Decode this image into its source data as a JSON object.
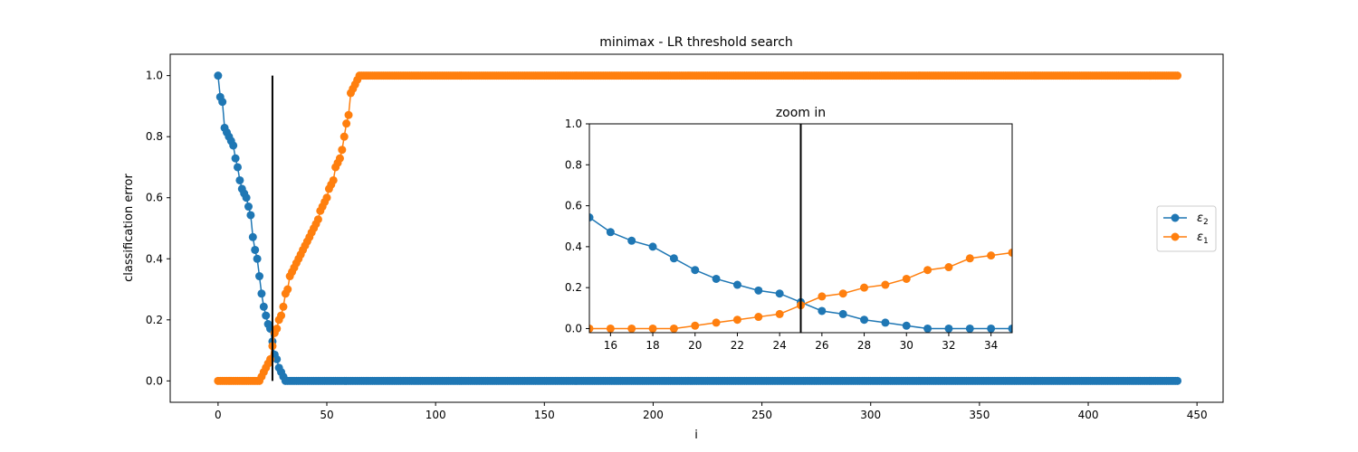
{
  "chart_data": [
    {
      "type": "line",
      "title": "minimax - LR threshold search",
      "xlabel": "i",
      "ylabel": "classification error",
      "xlim": [
        -22,
        462
      ],
      "ylim": [
        -0.07,
        1.07
      ],
      "xticks": [
        0,
        50,
        100,
        150,
        200,
        250,
        300,
        350,
        400,
        450
      ],
      "yticks": [
        0.0,
        0.2,
        0.4,
        0.6,
        0.8,
        1.0
      ],
      "x_range": [
        0,
        441
      ],
      "vline": {
        "x": 25,
        "y": [
          0,
          1
        ]
      },
      "grid": false,
      "legend": "center-right",
      "series": [
        {
          "name": "ε2",
          "sub": "2",
          "color": "#1f77b4",
          "marker": "circle",
          "values": [
            1.0,
            0.93,
            0.914,
            0.829,
            0.814,
            0.8,
            0.786,
            0.771,
            0.729,
            0.7,
            0.657,
            0.629,
            0.614,
            0.6,
            0.571,
            0.543,
            0.471,
            0.429,
            0.4,
            0.343,
            0.286,
            0.243,
            0.214,
            0.186,
            0.171,
            0.129,
            0.086,
            0.071,
            0.043,
            0.029,
            0.014,
            0.0
          ]
        },
        {
          "name": "ε1",
          "sub": "1",
          "color": "#ff7f0e",
          "marker": "circle",
          "values": [
            0.0,
            0.0,
            0.0,
            0.0,
            0.0,
            0.0,
            0.0,
            0.0,
            0.0,
            0.0,
            0.0,
            0.0,
            0.0,
            0.0,
            0.0,
            0.0,
            0.0,
            0.0,
            0.0,
            0.0,
            0.014,
            0.029,
            0.043,
            0.057,
            0.071,
            0.114,
            0.157,
            0.171,
            0.2,
            0.214,
            0.243,
            0.286,
            0.3,
            0.343,
            0.357,
            0.371,
            0.386,
            0.4,
            0.414,
            0.429,
            0.443,
            0.457,
            0.471,
            0.486,
            0.5,
            0.514,
            0.529,
            0.557,
            0.571,
            0.586,
            0.6,
            0.629,
            0.643,
            0.657,
            0.7,
            0.714,
            0.729,
            0.757,
            0.8,
            0.843,
            0.871,
            0.943,
            0.957,
            0.971,
            0.986,
            1.0
          ]
        }
      ]
    },
    {
      "type": "line",
      "title": "zoom in",
      "xlim": [
        15,
        35
      ],
      "ylim": [
        -0.02,
        1.0
      ],
      "xticks": [
        16,
        18,
        20,
        22,
        24,
        26,
        28,
        30,
        32,
        34
      ],
      "yticks": [
        0.0,
        0.2,
        0.4,
        0.6,
        0.8,
        1.0
      ],
      "vline": {
        "x": 25
      },
      "grid": false
    }
  ]
}
